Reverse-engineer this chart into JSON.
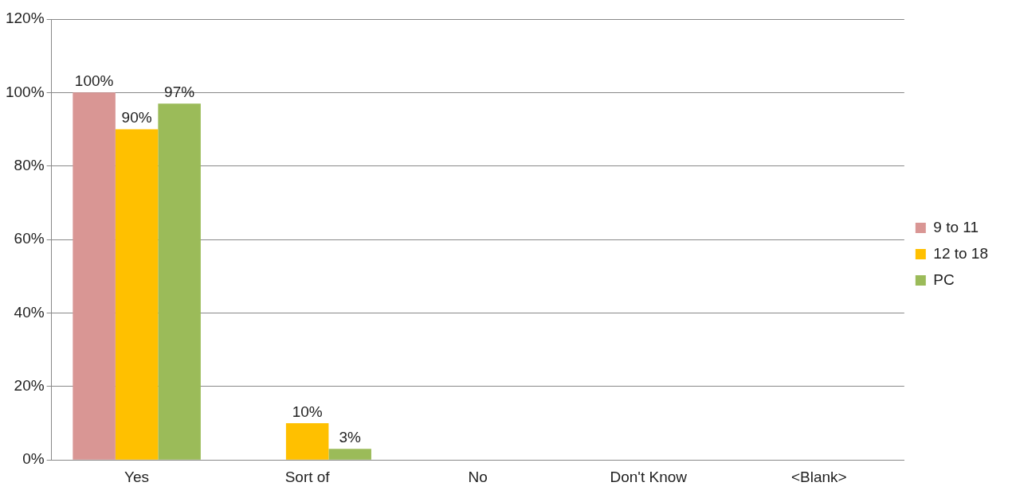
{
  "chart_data": {
    "type": "bar",
    "categories": [
      "Yes",
      "Sort of",
      "No",
      "Don't Know",
      "<Blank>"
    ],
    "series": [
      {
        "name": "9 to 11",
        "color": "#d99694",
        "values": [
          100,
          0,
          0,
          0,
          0
        ],
        "value_labels": [
          "100%",
          null,
          null,
          null,
          null
        ]
      },
      {
        "name": "12 to 18",
        "color": "#ffc000",
        "values": [
          90,
          10,
          0,
          0,
          0
        ],
        "value_labels": [
          "90%",
          "10%",
          null,
          null,
          null
        ]
      },
      {
        "name": "PC",
        "color": "#9bbb59",
        "values": [
          97,
          3,
          0,
          0,
          0
        ],
        "value_labels": [
          "97%",
          "3%",
          null,
          null,
          null
        ]
      }
    ],
    "ylim": [
      0,
      120
    ],
    "yticks": [
      {
        "value": 0,
        "label": "0%"
      },
      {
        "value": 20,
        "label": "20%"
      },
      {
        "value": 40,
        "label": "40%"
      },
      {
        "value": 60,
        "label": "60%"
      },
      {
        "value": 80,
        "label": "80%"
      },
      {
        "value": 100,
        "label": "100%"
      },
      {
        "value": 120,
        "label": "120%"
      }
    ],
    "grid": "y",
    "legend": "right"
  }
}
